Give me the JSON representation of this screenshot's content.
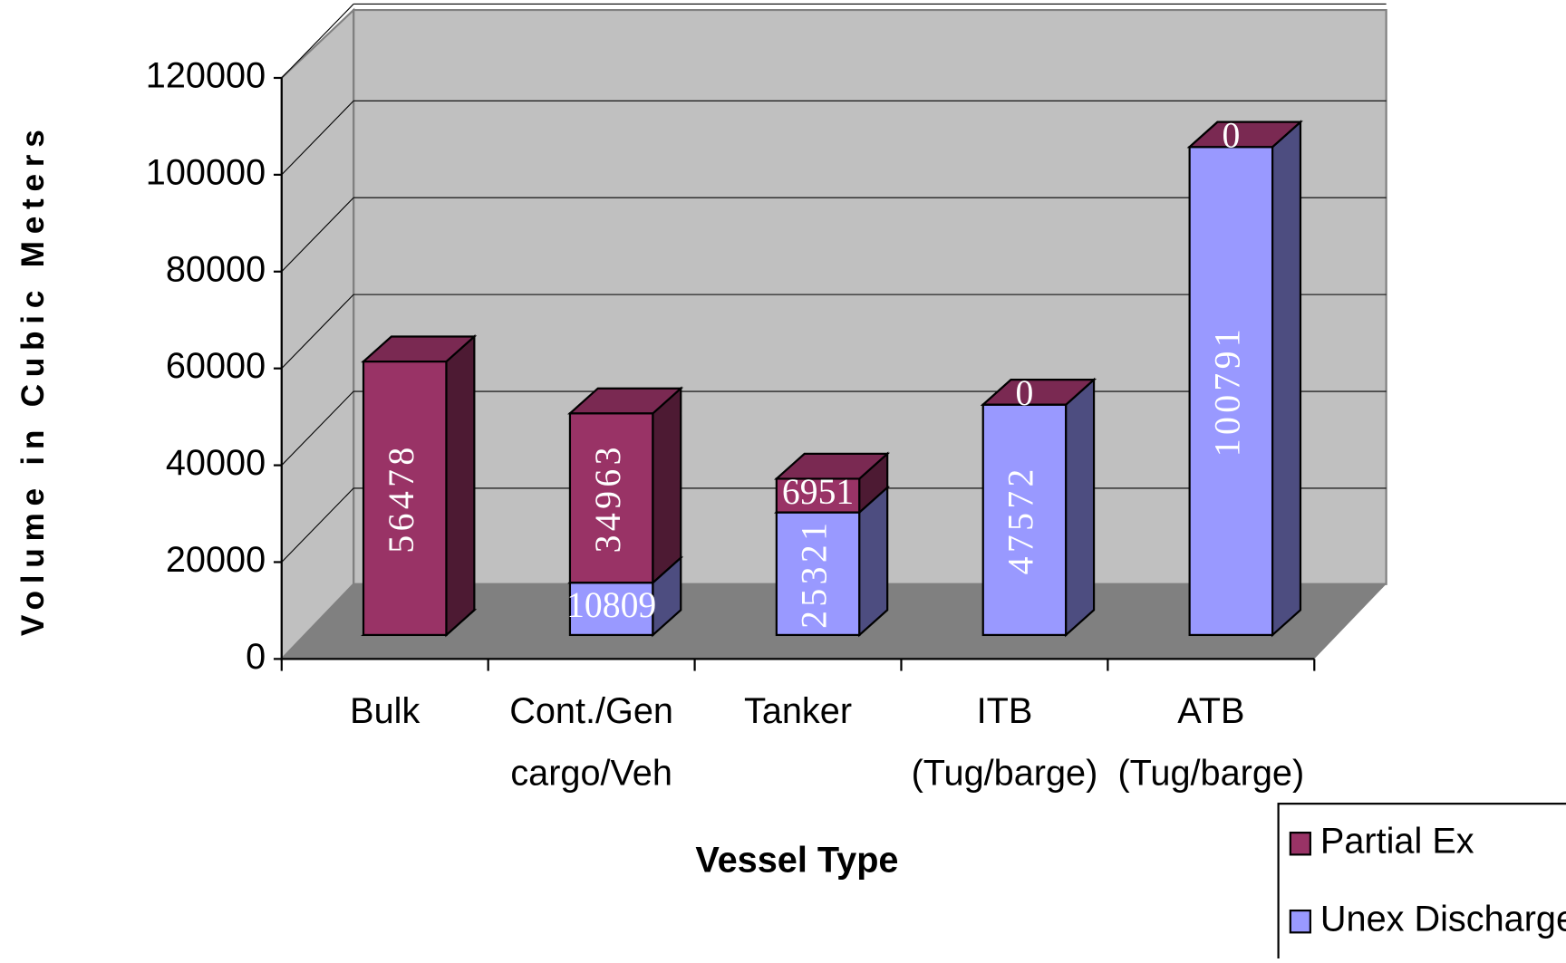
{
  "chart_data": {
    "type": "bar3d_stacked",
    "x_label": "Vessel Type",
    "y_label": "Volume in Cubic Meters",
    "categories": [
      "Bulk",
      "Cont./Gen\ncargo/Veh",
      "Tanker",
      "ITB\n(Tug/barge)",
      "ATB\n(Tug/barge)"
    ],
    "series": [
      {
        "name": "Unex Discharge",
        "color": "#9999ff",
        "values": [
          0,
          10809,
          25321,
          47572,
          100791
        ]
      },
      {
        "name": "Partial Ex",
        "color": "#993366",
        "values": [
          56478,
          34963,
          6951,
          0,
          0
        ]
      }
    ],
    "ylim": [
      0,
      120000
    ],
    "yticks": [
      0,
      20000,
      40000,
      60000,
      80000,
      100000,
      120000
    ],
    "grid": true,
    "legend": "bottom-right"
  }
}
